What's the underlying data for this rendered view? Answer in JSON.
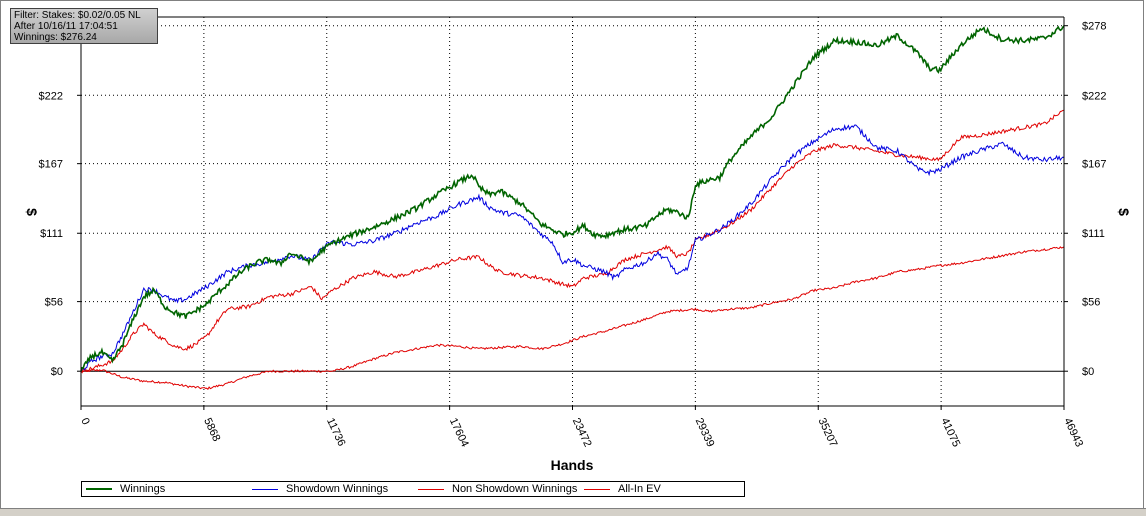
{
  "filter_box": {
    "line1": "Filter: Stakes: $0.02/0.05 NL",
    "line2": "After 10/16/11 17:04:51",
    "line3": "Winnings: $276.24"
  },
  "chart_data": {
    "type": "line",
    "xlabel": "Hands",
    "ylabel": "$",
    "xlim": [
      0,
      46943
    ],
    "ylim": [
      -28,
      285
    ],
    "x_ticks": [
      0,
      5868,
      11736,
      17604,
      23472,
      29339,
      35207,
      41075,
      46943
    ],
    "x_tick_labels": [
      "0",
      "5868",
      "11736",
      "17604",
      "23472",
      "29339",
      "35207",
      "41075",
      "46943"
    ],
    "y_ticks": [
      0,
      56,
      111,
      167,
      222,
      278
    ],
    "y_tick_labels": [
      "$0",
      "$56",
      "$111",
      "$167",
      "$222",
      "$278"
    ],
    "grid": true,
    "legend_position": "bottom",
    "series": [
      {
        "name": "Winnings",
        "color": "#006400",
        "x": [
          0,
          500,
          1000,
          1500,
          2000,
          2500,
          3000,
          3500,
          4000,
          4500,
          5000,
          5500,
          6000,
          6500,
          7000,
          7500,
          8000,
          8500,
          9000,
          9500,
          10000,
          11000,
          11500,
          12000,
          13000,
          14000,
          15000,
          16000,
          17000,
          18000,
          18700,
          19000,
          19500,
          20000,
          21000,
          22000,
          23000,
          23500,
          24000,
          24500,
          25000,
          25500,
          26000,
          27000,
          27500,
          28000,
          28500,
          29000,
          29339,
          30000,
          30500,
          31000,
          32000,
          33000,
          34000,
          35000,
          36000,
          37000,
          38000,
          39000,
          40000,
          40500,
          41000,
          42000,
          43000,
          44000,
          45000,
          46000,
          46500,
          46943
        ],
        "y": [
          0,
          12,
          15,
          8,
          22,
          42,
          60,
          65,
          52,
          47,
          44,
          49,
          54,
          63,
          70,
          78,
          84,
          88,
          90,
          86,
          95,
          88,
          97,
          103,
          110,
          116,
          123,
          131,
          142,
          152,
          158,
          148,
          142,
          145,
          135,
          118,
          110,
          112,
          117,
          110,
          109,
          112,
          114,
          117,
          125,
          130,
          128,
          123,
          150,
          154,
          156,
          170,
          189,
          205,
          229,
          253,
          266,
          265,
          262,
          270,
          255,
          244,
          242,
          262,
          276,
          267,
          266,
          268,
          273,
          278
        ]
      },
      {
        "name": "Showdown Winnings",
        "color": "#0000e0",
        "x": [
          0,
          500,
          1000,
          1500,
          2000,
          2500,
          3000,
          3500,
          4000,
          4500,
          5000,
          5500,
          6000,
          6500,
          7000,
          8000,
          9000,
          10000,
          11000,
          11500,
          12000,
          13000,
          14000,
          15000,
          16000,
          17000,
          18000,
          19000,
          19500,
          20000,
          21000,
          22000,
          22500,
          23000,
          23500,
          24000,
          25000,
          25500,
          26000,
          27000,
          27500,
          28000,
          28500,
          29000,
          29339,
          30000,
          30500,
          31000,
          32000,
          33000,
          34000,
          35000,
          36000,
          37000,
          38000,
          39000,
          40000,
          40500,
          41000,
          42000,
          43000,
          44000,
          45000,
          46000,
          46943
        ],
        "y": [
          0,
          8,
          12,
          14,
          30,
          48,
          66,
          65,
          60,
          56,
          58,
          63,
          68,
          74,
          80,
          85,
          88,
          93,
          89,
          99,
          104,
          102,
          105,
          111,
          119,
          125,
          134,
          140,
          132,
          128,
          125,
          110,
          104,
          88,
          90,
          85,
          80,
          75,
          82,
          88,
          95,
          90,
          77,
          84,
          105,
          110,
          114,
          120,
          135,
          155,
          173,
          185,
          195,
          197,
          180,
          177,
          162,
          160,
          162,
          172,
          178,
          183,
          172,
          170,
          172
        ]
      },
      {
        "name": "Non Showdown Winnings",
        "color": "#e00000",
        "x": [
          0,
          500,
          1000,
          1500,
          2000,
          2500,
          3000,
          3500,
          4000,
          4500,
          5000,
          5500,
          6000,
          6500,
          7000,
          8000,
          9000,
          10000,
          11000,
          11500,
          12000,
          13000,
          14000,
          15000,
          16000,
          17000,
          18000,
          19000,
          19500,
          20000,
          21000,
          22000,
          23000,
          23500,
          24000,
          25000,
          26000,
          27000,
          28000,
          28500,
          29000,
          29339,
          30000,
          31000,
          32000,
          33000,
          34000,
          35000,
          36000,
          37000,
          38000,
          39000,
          40000,
          41000,
          42000,
          43000,
          44000,
          45000,
          46000,
          46943
        ],
        "y": [
          0,
          2,
          5,
          8,
          18,
          30,
          38,
          30,
          25,
          20,
          18,
          22,
          28,
          40,
          50,
          52,
          60,
          62,
          68,
          58,
          65,
          75,
          80,
          76,
          80,
          85,
          90,
          92,
          85,
          80,
          77,
          75,
          70,
          68,
          75,
          78,
          90,
          95,
          100,
          92,
          95,
          105,
          110,
          118,
          130,
          148,
          165,
          177,
          182,
          180,
          177,
          174,
          172,
          170,
          188,
          190,
          193,
          196,
          199,
          210
        ]
      },
      {
        "name": "All-In EV",
        "color": "#e00000",
        "x": [
          0,
          1000,
          2000,
          3000,
          4000,
          5000,
          6000,
          7000,
          8000,
          9000,
          10000,
          11000,
          12000,
          13000,
          14000,
          15000,
          16000,
          17000,
          18000,
          19000,
          20000,
          21000,
          22000,
          23000,
          24000,
          25000,
          26000,
          27000,
          28000,
          29339,
          30000,
          31000,
          32000,
          33000,
          34000,
          35000,
          36000,
          37000,
          38000,
          39000,
          40000,
          41000,
          42000,
          43000,
          44000,
          45000,
          46000,
          46943
        ],
        "y": [
          0,
          1,
          -5,
          -8,
          -9,
          -12,
          -14,
          -10,
          -4,
          0,
          0,
          0,
          0,
          4,
          10,
          15,
          18,
          21,
          20,
          18,
          19,
          20,
          18,
          22,
          28,
          32,
          37,
          42,
          48,
          50,
          48,
          50,
          51,
          55,
          58,
          65,
          67,
          72,
          75,
          80,
          82,
          85,
          87,
          90,
          93,
          96,
          98,
          100
        ]
      }
    ]
  }
}
